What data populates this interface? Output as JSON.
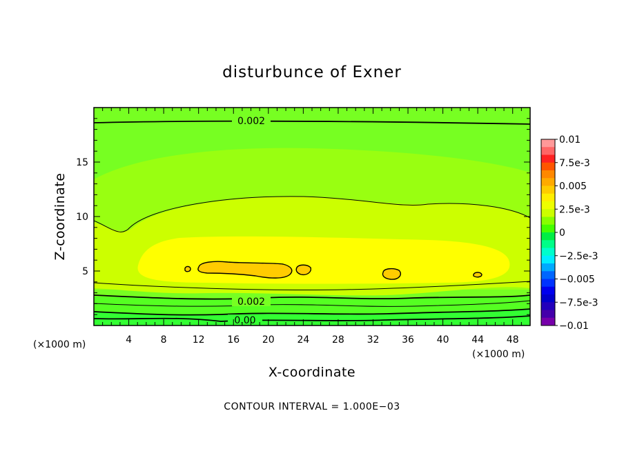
{
  "chart_data": {
    "type": "contour",
    "title": "disturbunce of Exner",
    "xlabel": "X-coordinate",
    "ylabel": "Z-coordinate",
    "x_unit_note": "(×1000 m)",
    "y_unit_note": "(×1000 m)",
    "xlim": [
      0,
      50
    ],
    "ylim": [
      0,
      20
    ],
    "x_ticks": [
      4,
      8,
      12,
      16,
      20,
      24,
      28,
      32,
      36,
      40,
      44,
      48
    ],
    "y_ticks": [
      5,
      10,
      15
    ],
    "colorbar": {
      "ticks": [
        "0.01",
        "7.5e-3",
        "0.005",
        "2.5e-3",
        "0",
        "−2.5e-3",
        "−0.005",
        "−7.5e-3",
        "−0.01"
      ],
      "range": [
        -0.01,
        0.01
      ]
    },
    "contour_labels": [
      "0.002",
      "0.002",
      "0.00"
    ],
    "footer": "CONTOUR INTERVAL = 1.000E−03",
    "colors": {
      "band_lowest": "#33ff33",
      "band_low": "#77ff22",
      "band_mid": "#bbff11",
      "band_upper": "#ddff00",
      "band_high": "#ffff00",
      "band_peak": "#ffcc00"
    }
  }
}
